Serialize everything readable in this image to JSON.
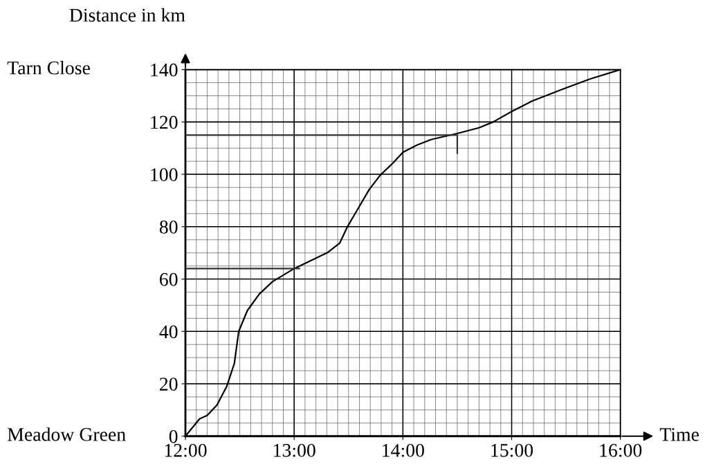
{
  "chart_data": {
    "type": "line",
    "xlabel": "Time",
    "ylabel": "Distance in km",
    "xlim": [
      12,
      16
    ],
    "ylim": [
      0,
      140
    ],
    "xticks": [
      {
        "value": 12,
        "label": "12:00"
      },
      {
        "value": 13,
        "label": "13:00"
      },
      {
        "value": 14,
        "label": "14:00"
      },
      {
        "value": 15,
        "label": "15:00"
      },
      {
        "value": 16,
        "label": "16:00"
      }
    ],
    "yticks": [
      0,
      20,
      40,
      60,
      80,
      100,
      120,
      140
    ],
    "grid": true,
    "marker": "none",
    "line_style": "solid",
    "annotations": [
      "Tarn Close",
      "Meadow Green"
    ],
    "series": [
      {
        "color": "#000000",
        "x": [
          12,
          12.13,
          12.2,
          12.29,
          12.38,
          12.45,
          12.49,
          12.57,
          12.68,
          12.8,
          12.9,
          13.0,
          13.31,
          13.42,
          13.49,
          13.59,
          13.69,
          13.79,
          13.91,
          14.0,
          14.13,
          14.26,
          14.5,
          14.7,
          14.83,
          15.0,
          15.19,
          15.46,
          15.72,
          16.0
        ],
        "values": [
          0,
          6.6,
          7.9,
          11.9,
          19,
          27.8,
          40,
          48,
          54.3,
          59,
          61.5,
          64,
          70.2,
          73.8,
          80,
          87.1,
          94.2,
          99.6,
          104.4,
          108.4,
          111.2,
          113.3,
          115.6,
          117.8,
          120,
          124,
          128,
          132.4,
          136.4,
          140
        ]
      },
      {
        "color": "#333333",
        "x": [
          12,
          14.5,
          14.5
        ],
        "values": [
          115,
          115,
          108
        ]
      },
      {
        "color": "#333333",
        "x": [
          12,
          13.05
        ],
        "values": [
          64,
          64
        ]
      }
    ]
  }
}
